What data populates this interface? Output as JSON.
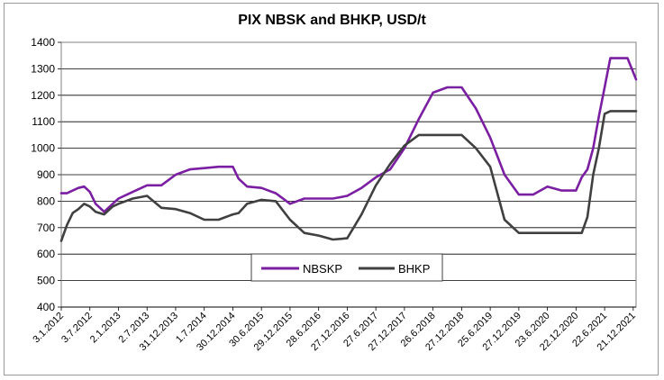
{
  "chart_data": {
    "type": "line",
    "title": "PIX NBSK and BHKP, USD/t",
    "xlabel": "",
    "ylabel": "",
    "ylim": [
      400,
      1400
    ],
    "yticks": [
      400,
      500,
      600,
      700,
      800,
      900,
      1000,
      1100,
      1200,
      1300,
      1400
    ],
    "grid": "horizontal",
    "legend_position": "inside-bottom-center",
    "x_tick_labels": [
      "3.1.2012",
      "3.7.2012",
      "2.1.2013",
      "2.7.2013",
      "31.12.2013",
      "1.7.2014",
      "30.12.2014",
      "30.6.2015",
      "29.12.2015",
      "28.6.2016",
      "27.12.2016",
      "27.6.2017",
      "27.12.2017",
      "26.6.2018",
      "27.12.2018",
      "25.6.2019",
      "27.12.2019",
      "23.6.2020",
      "22.12.2020",
      "22.6.2021",
      "21.12.2021"
    ],
    "x_tick_pos": [
      0,
      0.5,
      1,
      1.5,
      2,
      2.5,
      3,
      3.5,
      4,
      4.5,
      5,
      5.5,
      6,
      6.5,
      7,
      7.5,
      8,
      8.5,
      9,
      9.5,
      10
    ],
    "x": [
      0,
      0.1,
      0.2,
      0.3,
      0.4,
      0.5,
      0.6,
      0.75,
      0.9,
      1.0,
      1.25,
      1.5,
      1.75,
      2.0,
      2.25,
      2.5,
      2.75,
      3.0,
      3.1,
      3.25,
      3.5,
      3.75,
      4.0,
      4.25,
      4.5,
      4.75,
      5.0,
      5.25,
      5.5,
      5.75,
      6.0,
      6.25,
      6.5,
      6.75,
      7.0,
      7.25,
      7.5,
      7.75,
      8.0,
      8.25,
      8.5,
      8.75,
      9.0,
      9.1,
      9.2,
      9.3,
      9.4,
      9.5,
      9.6,
      9.75,
      9.9,
      10.05
    ],
    "series": [
      {
        "name": "NBSKP",
        "color": "#7B1FA2",
        "values": [
          830,
          830,
          840,
          850,
          855,
          835,
          790,
          760,
          790,
          810,
          835,
          860,
          860,
          900,
          920,
          925,
          930,
          930,
          885,
          855,
          850,
          830,
          790,
          810,
          810,
          810,
          820,
          850,
          890,
          920,
          1000,
          1110,
          1210,
          1230,
          1230,
          1150,
          1040,
          900,
          825,
          825,
          855,
          840,
          840,
          890,
          920,
          1000,
          1120,
          1230,
          1340,
          1340,
          1340,
          1260
        ]
      },
      {
        "name": "BHKP",
        "color": "#404040",
        "values": [
          650,
          710,
          755,
          770,
          790,
          780,
          760,
          750,
          780,
          790,
          810,
          820,
          775,
          770,
          755,
          730,
          730,
          750,
          755,
          790,
          805,
          800,
          730,
          680,
          670,
          655,
          660,
          750,
          860,
          940,
          1010,
          1050,
          1050,
          1050,
          1050,
          1000,
          930,
          730,
          680,
          680,
          680,
          680,
          680,
          680,
          740,
          900,
          1000,
          1130,
          1140,
          1140,
          1140,
          1140
        ]
      }
    ]
  }
}
